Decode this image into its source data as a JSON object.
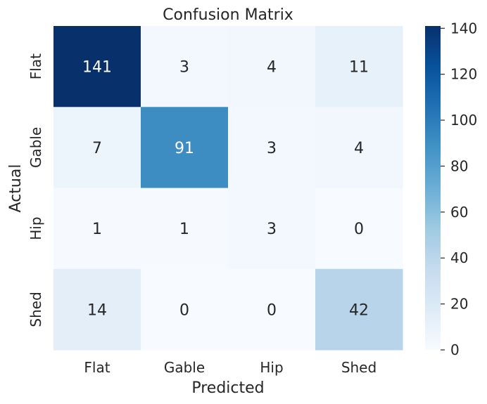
{
  "chart_data": {
    "type": "heatmap",
    "title": "Confusion Matrix",
    "xlabel": "Predicted",
    "ylabel": "Actual",
    "x_categories": [
      "Flat",
      "Gable",
      "Hip",
      "Shed"
    ],
    "y_categories": [
      "Flat",
      "Gable",
      "Hip",
      "Shed"
    ],
    "values": [
      [
        141,
        3,
        4,
        11
      ],
      [
        7,
        91,
        3,
        4
      ],
      [
        1,
        1,
        3,
        0
      ],
      [
        14,
        0,
        0,
        42
      ]
    ],
    "colormap": "Blues",
    "colorbar": {
      "min": 0,
      "max": 141,
      "ticks": [
        0,
        20,
        40,
        60,
        80,
        100,
        120,
        140
      ]
    },
    "colors": {
      "low": "#f7fbff",
      "high": "#08306b",
      "text_dark": "#262626",
      "text_light": "#ffffff"
    }
  }
}
